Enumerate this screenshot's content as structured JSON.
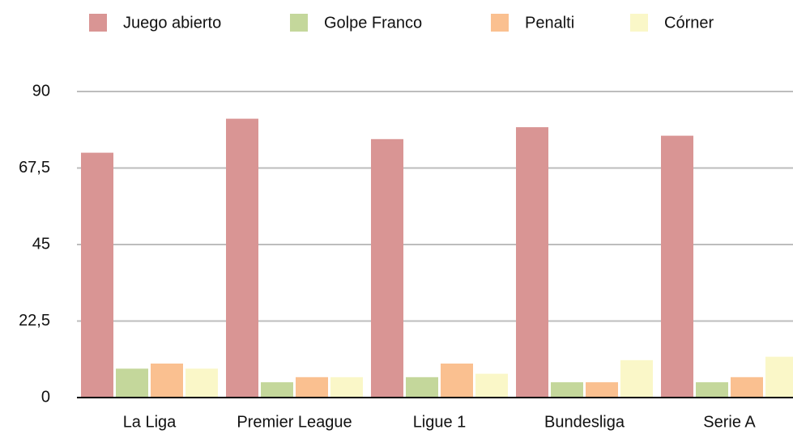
{
  "chart_data": {
    "type": "bar",
    "categories": [
      "La Liga",
      "Premier League",
      "Ligue 1",
      "Bundesliga",
      "Serie A"
    ],
    "series": [
      {
        "name": "Juego abierto",
        "color": "#d99594",
        "values": [
          72,
          82,
          76,
          79.5,
          77
        ]
      },
      {
        "name": "Golpe Franco",
        "color": "#c4d79b",
        "values": [
          8.5,
          4.5,
          6,
          4.5,
          4.5
        ]
      },
      {
        "name": "Penalti",
        "color": "#fac090",
        "values": [
          10,
          6,
          10,
          4.5,
          6
        ]
      },
      {
        "name": "Córner",
        "color": "#faf7c8",
        "values": [
          8.5,
          6,
          7,
          11,
          12
        ]
      }
    ],
    "ylim": [
      0,
      90
    ],
    "yticks": [
      0,
      {
        "value": 22.5,
        "label": "22,5"
      },
      45,
      {
        "value": 67.5,
        "label": "67,5"
      },
      90
    ],
    "grid": true,
    "legend": "top"
  }
}
